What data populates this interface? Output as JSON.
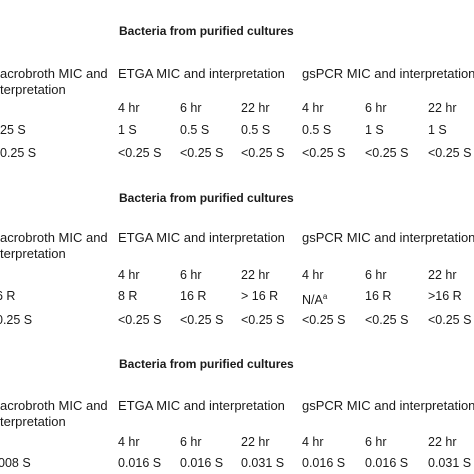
{
  "blocks": [
    {
      "title": "Bacteria from purified cultures",
      "macro_header": [
        "acrobroth MIC and",
        "terpretation"
      ],
      "etga_header": "ETGA MIC and interpretation",
      "gspcr_header": "gsPCR MIC and interpretation",
      "timepoints": [
        "4 hr",
        "6 hr",
        "22 hr",
        "4 hr",
        "6 hr",
        "22 hr"
      ],
      "rows": [
        [
          "25 S",
          "1 S",
          "0.5 S",
          "0.5 S",
          "0.5 S",
          "1 S",
          "1 S"
        ],
        [
          "0.25 S",
          "<0.25 S",
          "<0.25 S",
          "<0.25 S",
          "<0.25 S",
          "<0.25 S",
          "<0.25 S"
        ]
      ]
    },
    {
      "title": "Bacteria from purified cultures",
      "macro_header": [
        "acrobroth MIC and",
        "terpretation"
      ],
      "etga_header": "ETGA MIC and interpretation",
      "gspcr_header": "gsPCR MIC and interpretation",
      "timepoints": [
        "4 hr",
        "6 hr",
        "22 hr",
        "4 hr",
        "6 hr",
        "22 hr"
      ],
      "rows": [
        [
          "6 R",
          "8 R",
          "16 R",
          "> 16 R",
          "N/A",
          "16 R",
          ">16 R"
        ],
        [
          "0.25 S",
          "<0.25 S",
          "<0.25 S",
          "<0.25 S",
          "<0.25 S",
          "<0.25 S",
          "<0.25 S"
        ]
      ],
      "footnote_mark": "a"
    },
    {
      "title": "Bacteria from purified cultures",
      "macro_header": [
        "acrobroth MIC and",
        "terpretation"
      ],
      "etga_header": "ETGA MIC and interpretation",
      "gspcr_header": "gsPCR MIC and interpretation",
      "timepoints": [
        "4 hr",
        "6 hr",
        "22 hr",
        "4 hr",
        "6 hr",
        "22 hr"
      ],
      "rows": [
        [
          "008 S",
          "0.016 S",
          "0.016 S",
          "0.031 S",
          "0.016 S",
          "0.016 S",
          "0.031 S"
        ]
      ]
    }
  ]
}
